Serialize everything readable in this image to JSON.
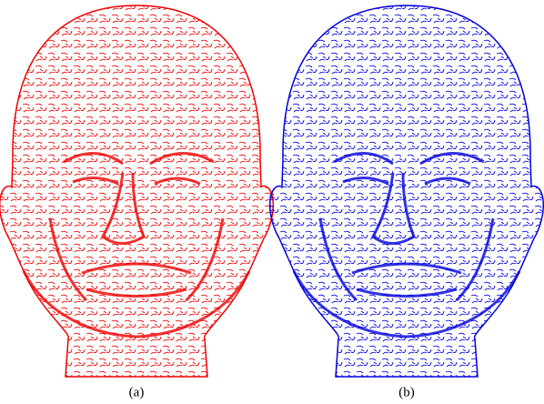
{
  "figure": {
    "panels": [
      {
        "label": "(a)"
      },
      {
        "label": "(b)"
      }
    ]
  }
}
